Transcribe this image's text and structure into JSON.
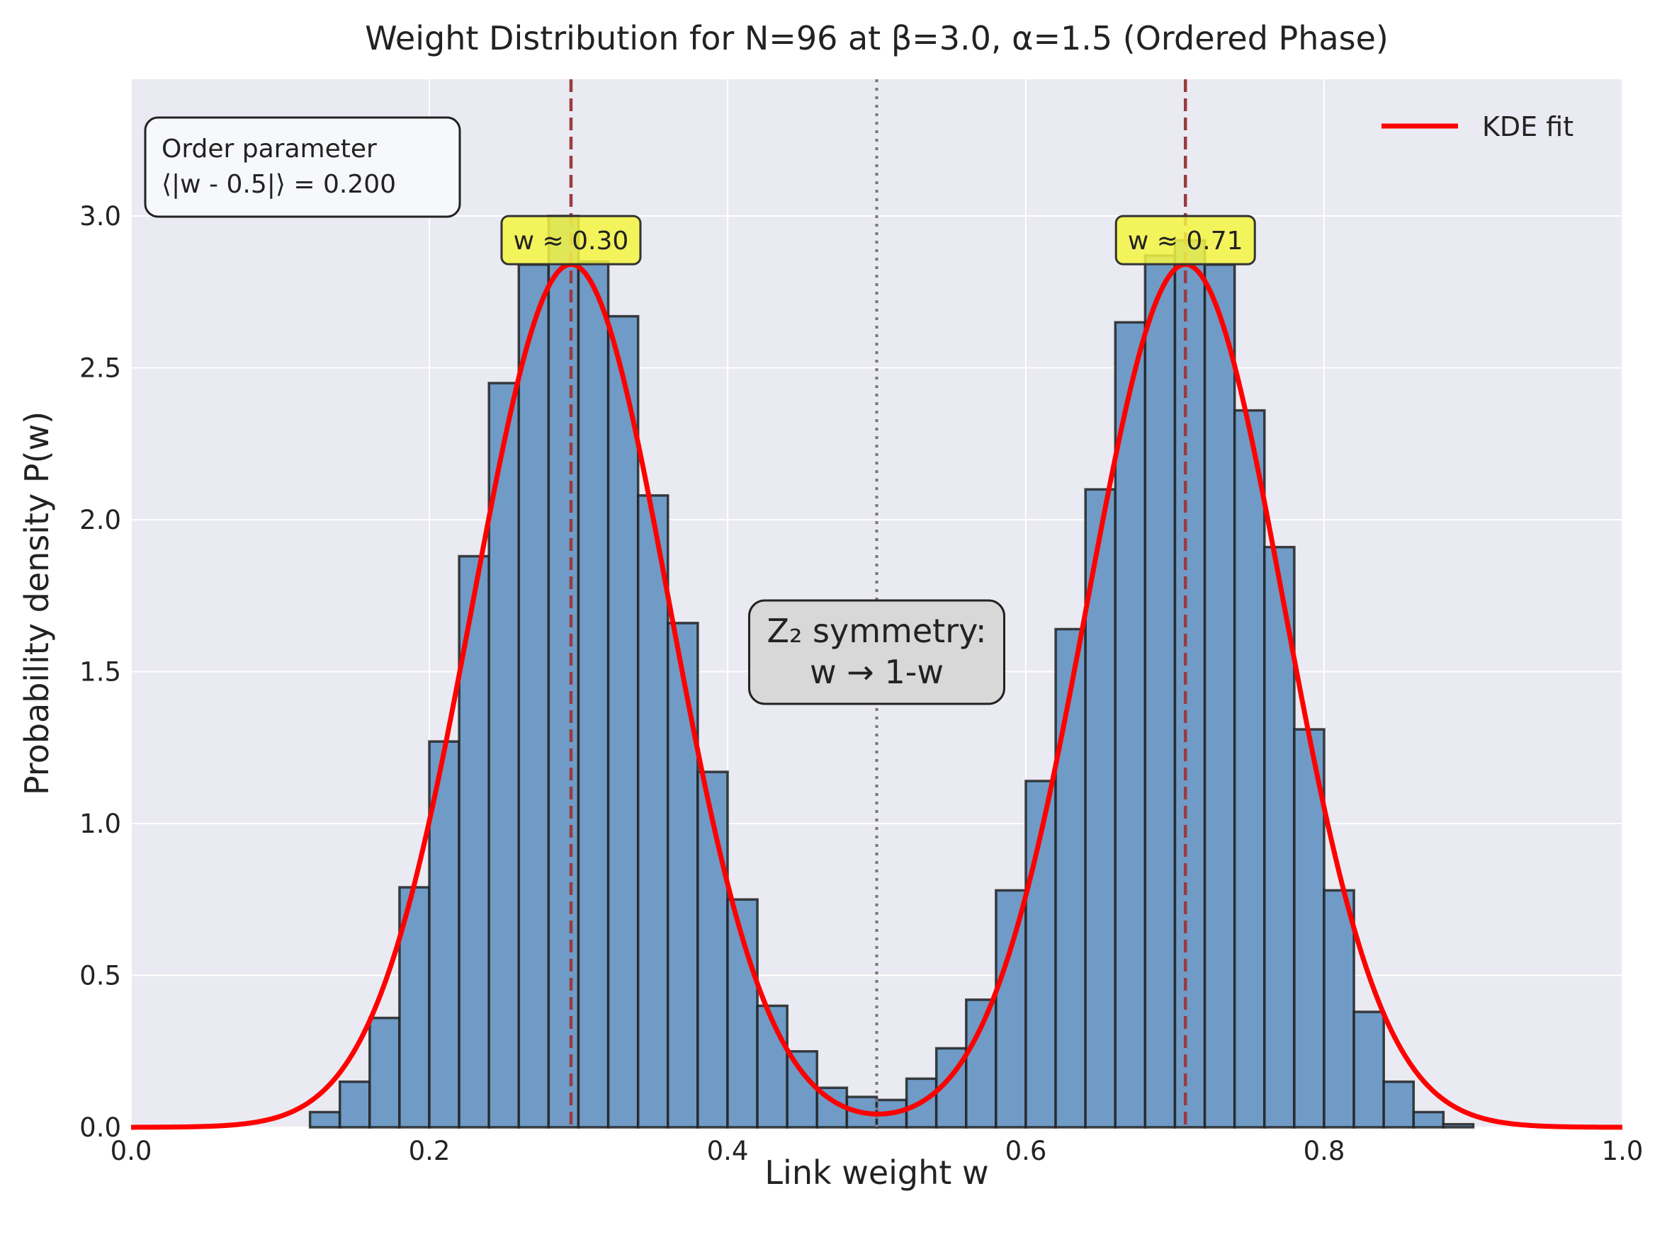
{
  "chart_data": {
    "type": "bar",
    "title": "Weight Distribution for N=96 at β=3.0, α=1.5 (Ordered Phase)",
    "xlabel": "Link weight w",
    "ylabel": "Probability density P(w)",
    "xlim": [
      0.0,
      1.0
    ],
    "ylim": [
      0.0,
      3.45
    ],
    "xticks": [
      0.0,
      0.2,
      0.4,
      0.6,
      0.8,
      1.0
    ],
    "xtick_labels": [
      "0.0",
      "0.2",
      "0.4",
      "0.6",
      "0.8",
      "1.0"
    ],
    "yticks": [
      0.0,
      0.5,
      1.0,
      1.5,
      2.0,
      2.5,
      3.0
    ],
    "ytick_labels": [
      "0.0",
      "0.5",
      "1.0",
      "1.5",
      "2.0",
      "2.5",
      "3.0"
    ],
    "grid": true,
    "legend_position": "top-right",
    "histogram": {
      "bin_width": 0.02,
      "bin_starts": [
        0.12,
        0.14,
        0.16,
        0.18,
        0.2,
        0.22,
        0.24,
        0.26,
        0.28,
        0.3,
        0.32,
        0.34,
        0.36,
        0.38,
        0.4,
        0.42,
        0.44,
        0.46,
        0.48,
        0.5,
        0.52,
        0.54,
        0.56,
        0.58,
        0.6,
        0.62,
        0.64,
        0.66,
        0.68,
        0.7,
        0.72,
        0.74,
        0.76,
        0.78,
        0.8,
        0.82,
        0.84,
        0.86,
        0.88
      ],
      "values": [
        0.05,
        0.15,
        0.36,
        0.79,
        1.27,
        1.88,
        2.45,
        2.84,
        3.0,
        2.85,
        2.67,
        2.08,
        1.66,
        1.17,
        0.75,
        0.4,
        0.25,
        0.13,
        0.1,
        0.09,
        0.16,
        0.26,
        0.42,
        0.78,
        1.14,
        1.64,
        2.1,
        2.65,
        2.87,
        2.92,
        2.84,
        2.36,
        1.91,
        1.31,
        0.78,
        0.38,
        0.15,
        0.05,
        0.01
      ]
    },
    "series": [
      {
        "name": "KDE fit",
        "type": "line",
        "color": "#ff0000",
        "model": {
          "mixture": [
            {
              "mean": 0.295,
              "sd": 0.066,
              "weight": 0.47
            },
            {
              "mean": 0.707,
              "sd": 0.066,
              "weight": 0.47
            }
          ]
        }
      }
    ],
    "vlines": [
      {
        "x": 0.295,
        "style": "dashed",
        "color": "#9b3a40"
      },
      {
        "x": 0.707,
        "style": "dashed",
        "color": "#9b3a40"
      },
      {
        "x": 0.5,
        "style": "dotted",
        "color": "#777777"
      }
    ],
    "peak_labels": [
      {
        "text": "w ≈ 0.30",
        "x": 0.295,
        "y": 2.93
      },
      {
        "text": "w ≈ 0.71",
        "x": 0.707,
        "y": 2.93
      }
    ],
    "annotations": {
      "order_parameter_line1": "Order parameter",
      "order_parameter_line2": "⟨|w - 0.5|⟩ = 0.200",
      "symmetry_line1": "Z₂ symmetry:",
      "symmetry_line2": "w → 1-w"
    },
    "colors": {
      "bar_fill": "#6f9bc6",
      "bar_edge": "#222222",
      "plot_background": "#eaeaf2",
      "peak_label_fill": "#f5f542",
      "symmetry_box_fill": "#d8d8d8",
      "order_box_fill": "#f7f8fb"
    }
  }
}
